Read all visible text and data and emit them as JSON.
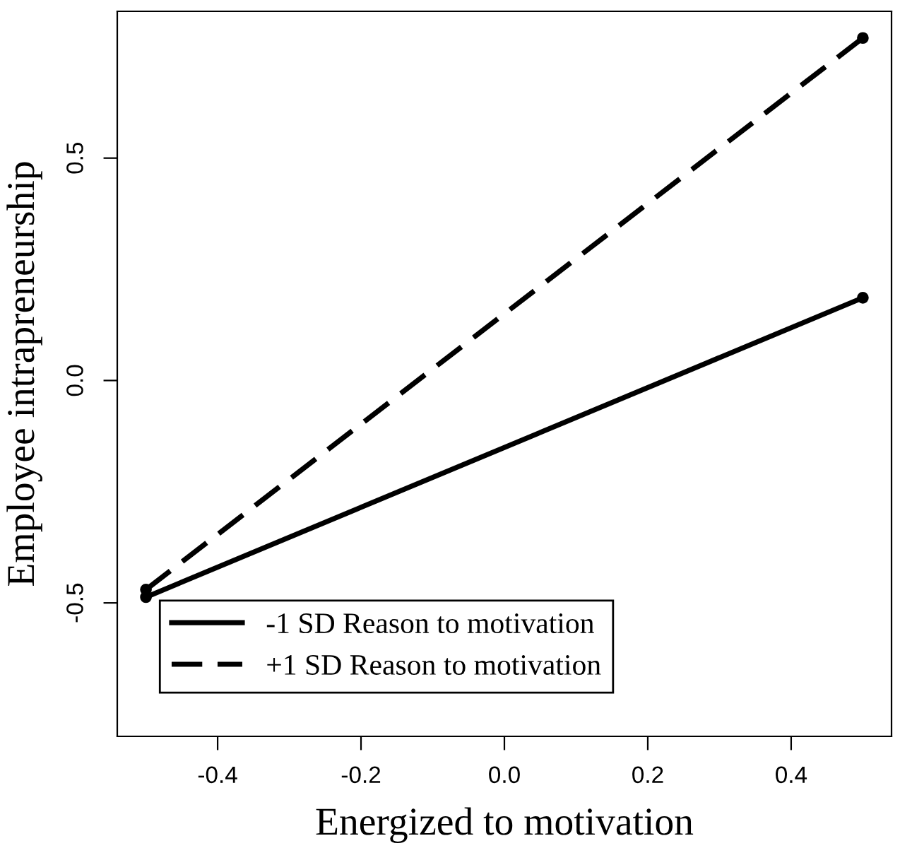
{
  "chart_data": {
    "type": "line",
    "xlabel": "Energized to motivation",
    "ylabel": "Employee intrapreneurship",
    "x": [
      -0.5,
      0.5
    ],
    "series": [
      {
        "name": "-1 SD Reason to motivation",
        "color": "#000000",
        "values": [
          -0.487,
          0.186
        ],
        "line_style": "solid"
      },
      {
        "name": "+1 SD Reason to motivation",
        "color": "#000000",
        "values": [
          -0.47,
          0.77
        ],
        "line_style": "dashed"
      }
    ],
    "marker": "circle",
    "xlim": [
      -0.54,
      0.54
    ],
    "ylim": [
      -0.8,
      0.83
    ],
    "xticks": [
      -0.4,
      -0.2,
      {
        "value": 0,
        "label": "0.0"
      },
      0.2,
      0.4
    ],
    "yticks": [
      -0.5,
      {
        "value": 0,
        "label": "0.0"
      },
      0.5
    ],
    "grid": false,
    "legend": "bottom left"
  }
}
